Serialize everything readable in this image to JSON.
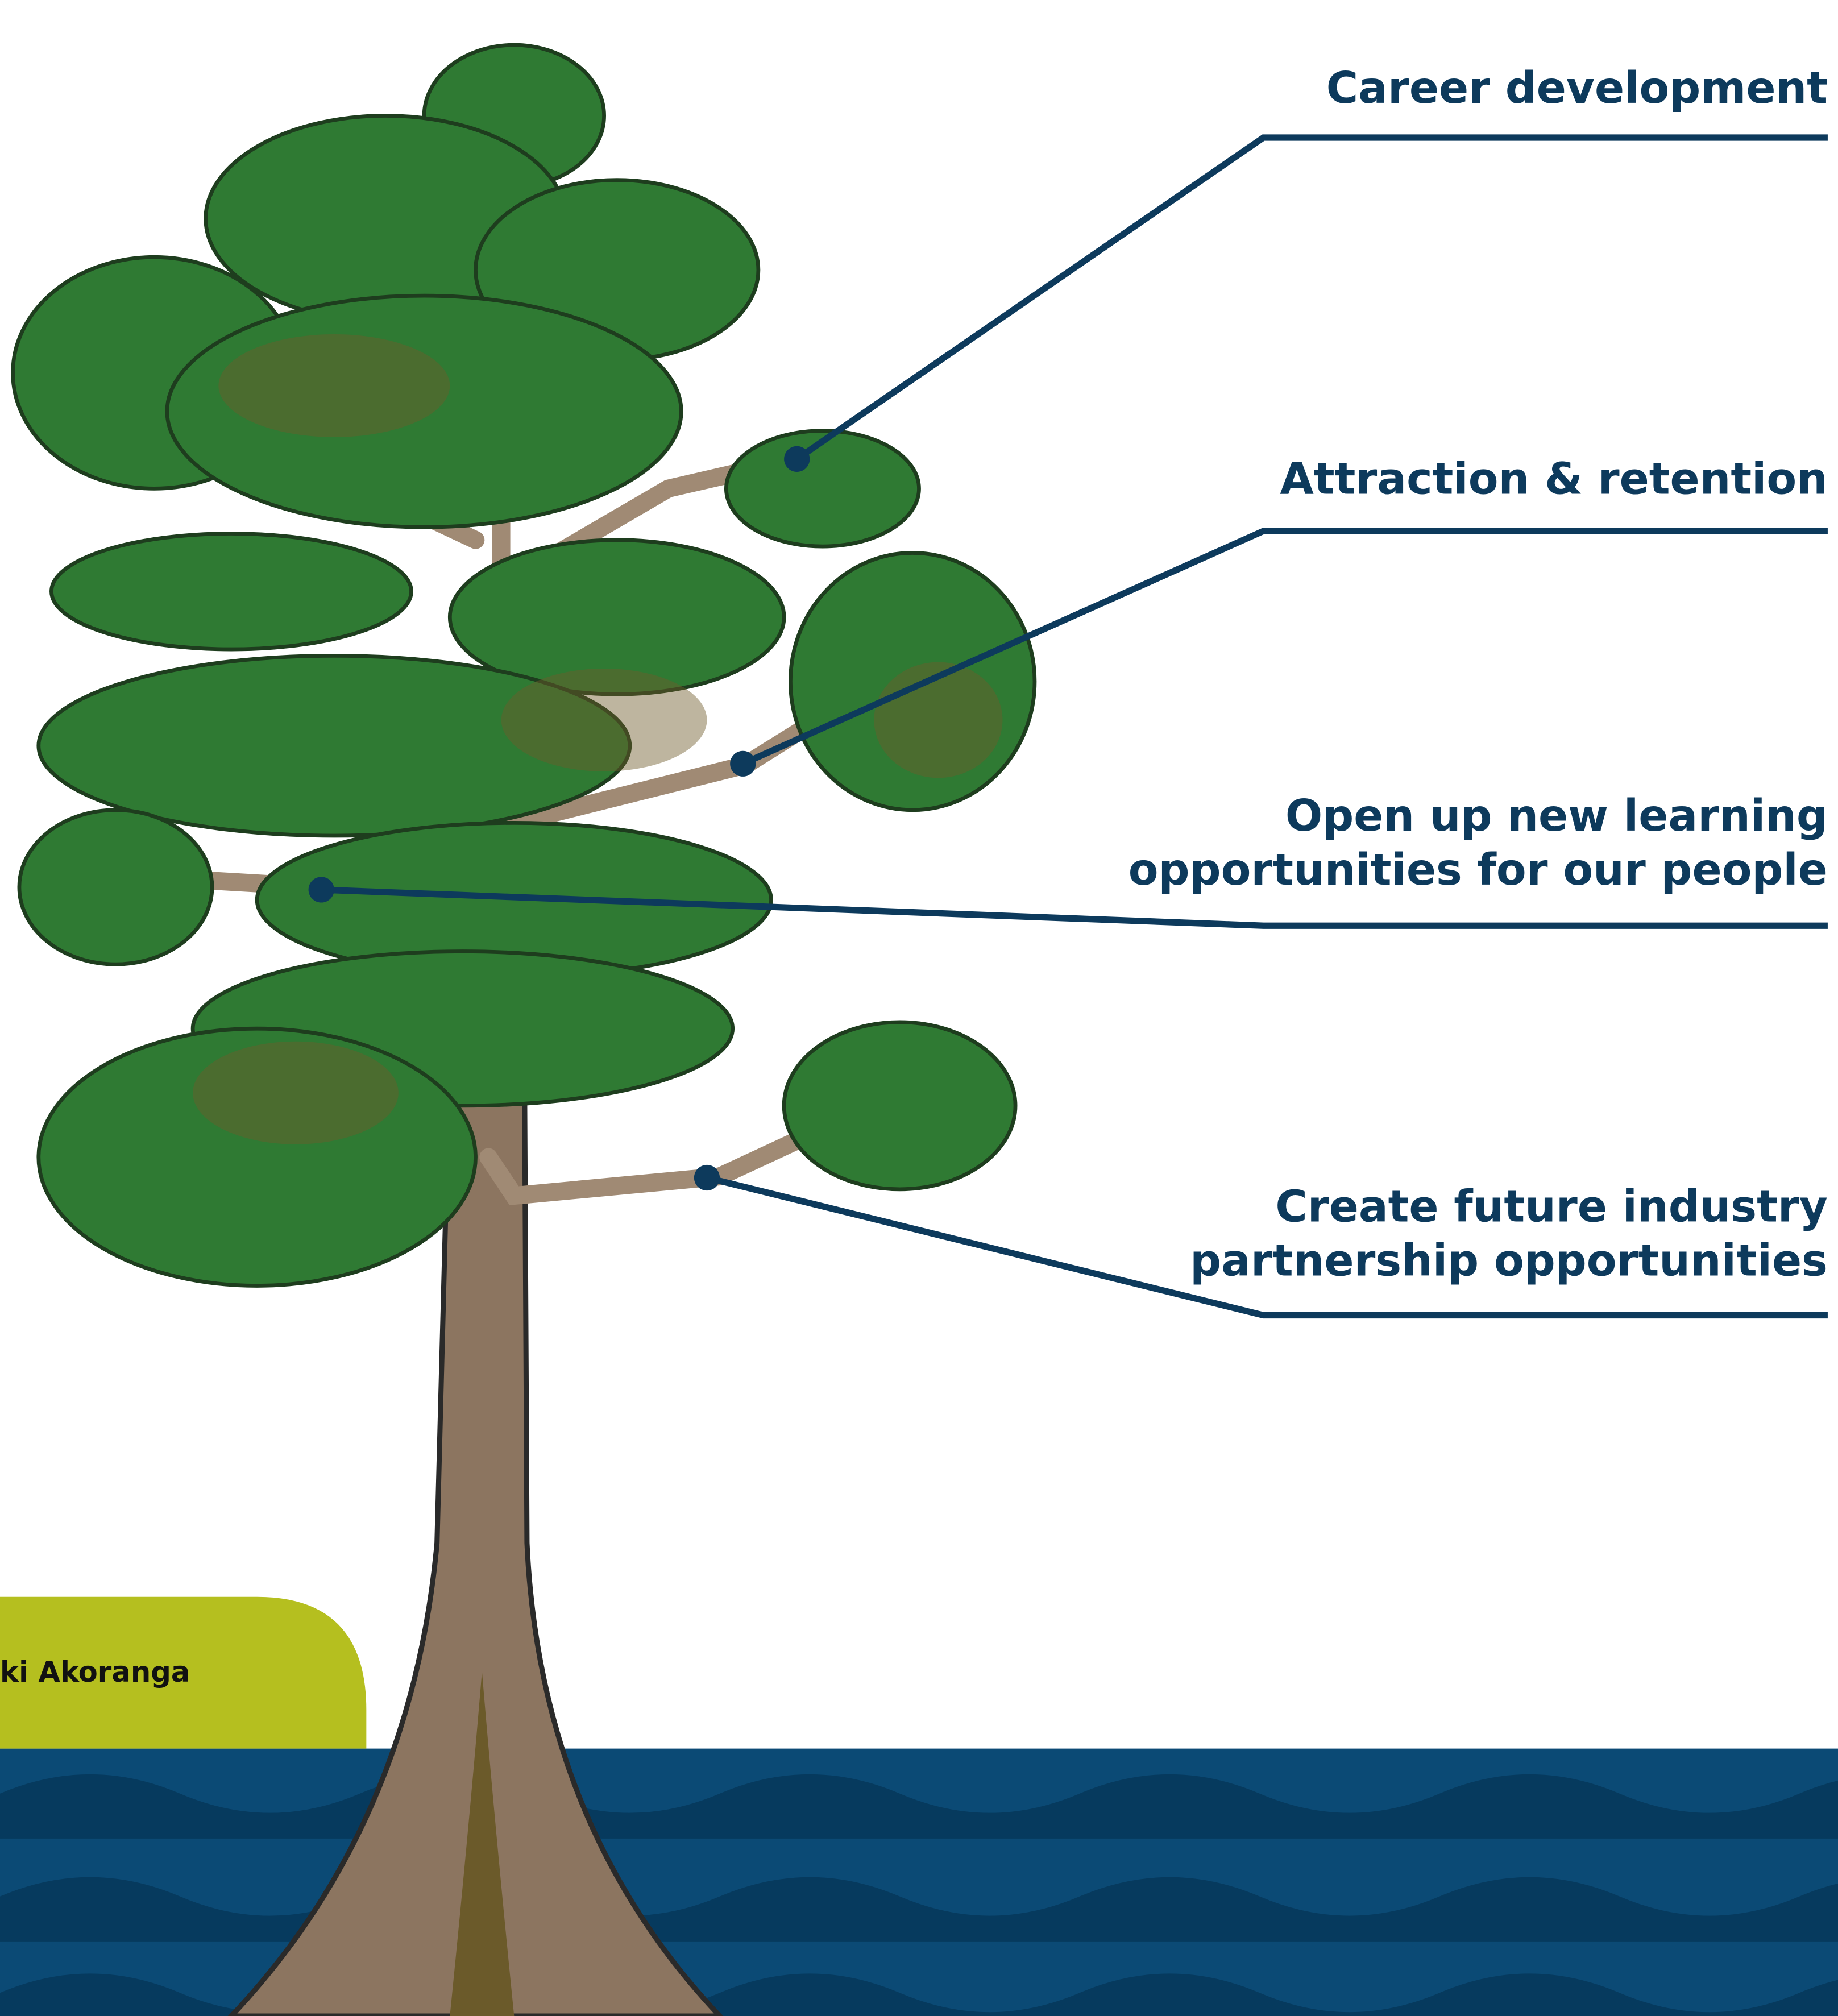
{
  "labels": [
    {
      "lines": [
        "Career development"
      ]
    },
    {
      "lines": [
        "Attraction & retention"
      ]
    },
    {
      "lines": [
        "Open up new learning",
        "opportunities for our people"
      ]
    },
    {
      "lines": [
        "Create future industry",
        "partnership opportunities"
      ]
    }
  ],
  "badge": {
    "text": "ki Akoranga"
  }
}
